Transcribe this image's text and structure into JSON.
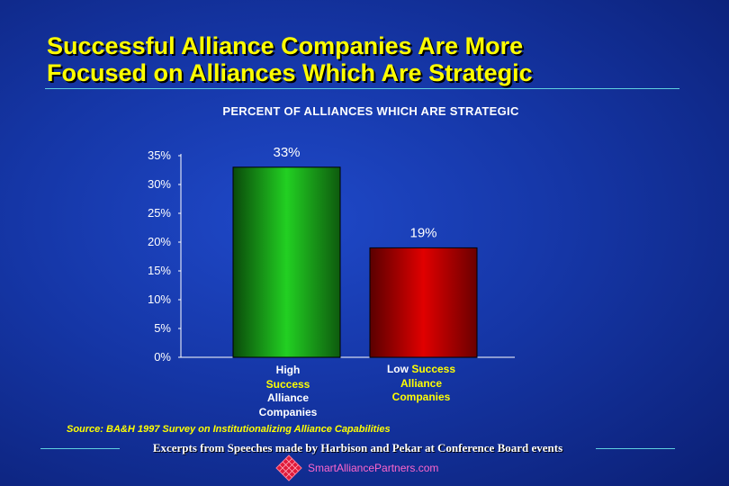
{
  "title": {
    "line1": "Successful Alliance Companies Are More",
    "line2": "Focused on Alliances Which Are Strategic"
  },
  "chart_data": {
    "type": "bar",
    "title": "PERCENT OF ALLIANCES WHICH ARE STRATEGIC",
    "categories": [
      "High Success Alliance Companies",
      "Low Success Alliance Companies"
    ],
    "values": [
      33,
      19
    ],
    "data_labels": [
      "33%",
      "19%"
    ],
    "ylim": [
      0,
      35
    ],
    "yticks": [
      "0%",
      "5%",
      "10%",
      "15%",
      "20%",
      "25%",
      "30%",
      "35%"
    ],
    "colors": [
      "#22c422",
      "#d00000"
    ],
    "grid": false,
    "legend": "none"
  },
  "category_labels": {
    "high": {
      "w": "High",
      "y1": "Success",
      "y2": "Alliance",
      "y3": "Companies"
    },
    "low": {
      "w": "Low",
      "y1": "Success",
      "y2": "Alliance",
      "y3": "Companies"
    }
  },
  "source": "Source:  BA&H 1997 Survey on Institutionalizing Alliance Capabilities",
  "excerpt": "Excerpts from Speeches made by Harbison and Pekar at Conference Board events",
  "brand": {
    "text": "SmartAlliancePartners.com",
    "logo_icon": "diamond-lattice-logo"
  },
  "colors": {
    "title": "#ffff00",
    "rule": "#5fd0e0",
    "brand_text": "#ff66cc"
  }
}
